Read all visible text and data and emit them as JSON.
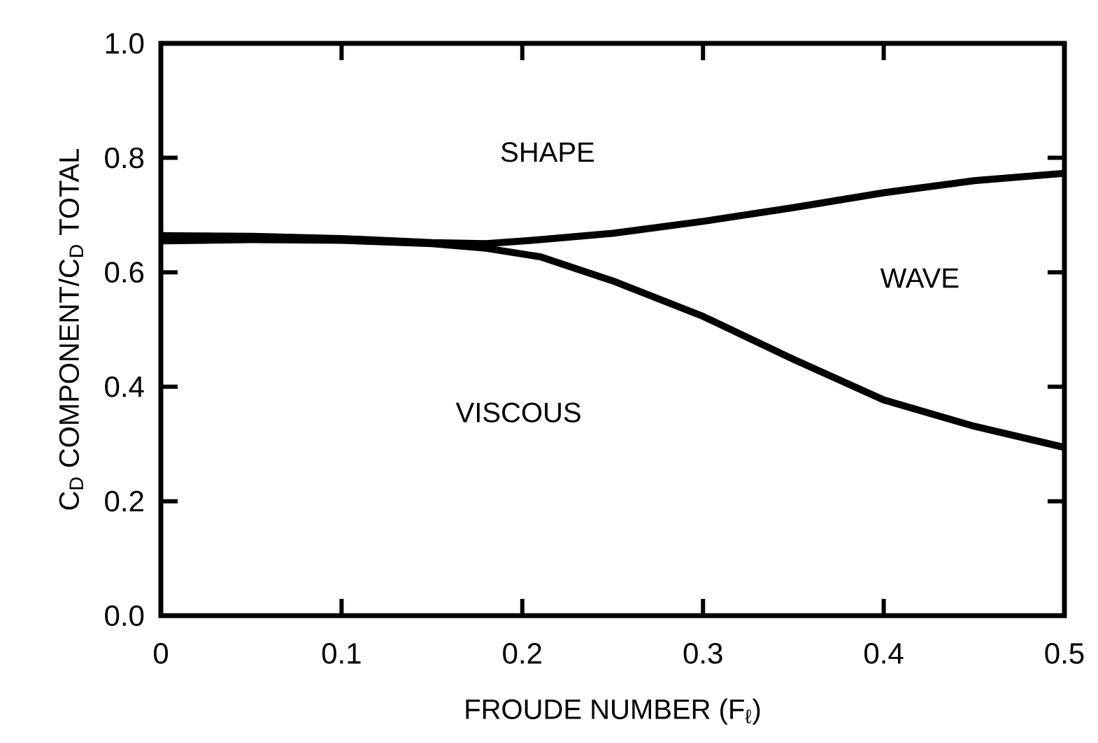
{
  "chart_data": {
    "type": "line",
    "xlabel": "FROUDE NUMBER (F$_{ℓ}$)",
    "ylabel": "C$_{D}$ COMPONENT/C$_{D}$ TOTAL",
    "annotations": [
      "SHAPE",
      "WAVE",
      "VISCOUS"
    ],
    "xlim": [
      0,
      0.5
    ],
    "ylim": [
      0,
      1
    ],
    "xticks": [
      0,
      0.1,
      0.2,
      0.3,
      0.4,
      0.5
    ],
    "yticks": [
      {
        "value": 0,
        "label": "0.0"
      },
      0.2,
      0.4,
      0.6,
      0.8,
      {
        "value": 1,
        "label": "1.0"
      }
    ],
    "marker": "none",
    "line_style": "solid",
    "series": [
      {
        "color": "#000000",
        "x": [
          0,
          0.05,
          0.1,
          0.15,
          0.18,
          0.21,
          0.25,
          0.3,
          0.35,
          0.4,
          0.45,
          0.5
        ],
        "values": [
          0.664,
          0.663,
          0.659,
          0.652,
          0.65,
          0.657,
          0.668,
          0.689,
          0.713,
          0.739,
          0.76,
          0.773
        ]
      },
      {
        "color": "#000000",
        "x": [
          0,
          0.05,
          0.1,
          0.15,
          0.18,
          0.21,
          0.25,
          0.3,
          0.35,
          0.4,
          0.45,
          0.5
        ],
        "values": [
          0.655,
          0.657,
          0.656,
          0.65,
          0.642,
          0.627,
          0.585,
          0.523,
          0.448,
          0.377,
          0.331,
          0.294
        ]
      }
    ]
  }
}
